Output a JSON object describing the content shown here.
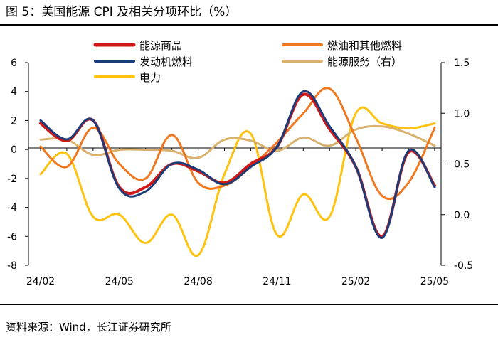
{
  "figure_title": "图 5：美国能源 CPI 及相关分项环比（%）",
  "source_note": "资料来源：Wind，长江证券研究所",
  "chart_data": {
    "type": "line",
    "title": "美国能源 CPI 及相关分项环比（%）",
    "categories": [
      "24/02",
      "24/03",
      "24/04",
      "24/05",
      "24/06",
      "24/07",
      "24/08",
      "24/09",
      "24/10",
      "24/11",
      "24/12",
      "25/01",
      "25/02",
      "25/03",
      "25/04",
      "25/05"
    ],
    "x_tick_labels": [
      "24/02",
      "24/05",
      "24/08",
      "24/11",
      "25/02",
      "25/05"
    ],
    "y_left": {
      "ticks": [
        6,
        4,
        2,
        0,
        -2,
        -4,
        -6,
        -8
      ],
      "ylim": [
        -8,
        6
      ],
      "unit": "%"
    },
    "y_right": {
      "ticks": [
        1.5,
        1.0,
        0.5,
        0.0,
        -0.5
      ],
      "tick_labels": [
        "1.5",
        "1.0",
        "0.5",
        "0.0",
        "-0.5"
      ],
      "ylim": [
        -0.5,
        1.5
      ],
      "unit": "%"
    },
    "series": [
      {
        "name": "燃油和其他燃料",
        "axis": "left",
        "color": "#F07820",
        "width": 3,
        "values": [
          0.2,
          -1.2,
          1.5,
          -1.0,
          -2.0,
          1.0,
          -2.3,
          -2.5,
          -1.2,
          0.5,
          2.5,
          4.2,
          0.8,
          -3.2,
          -2.3,
          1.5
        ]
      },
      {
        "name": "能源商品",
        "axis": "left",
        "color": "#D01818",
        "width": 4,
        "values": [
          1.8,
          0.6,
          2.0,
          -2.6,
          -2.6,
          -1.0,
          -1.5,
          -2.3,
          -1.0,
          0.2,
          3.8,
          1.4,
          -1.2,
          -6.0,
          -0.2,
          -2.5
        ]
      },
      {
        "name": "发动机燃料",
        "axis": "left",
        "color": "#1A3D7A",
        "width": 3,
        "values": [
          2.0,
          0.7,
          2.0,
          -2.7,
          -2.9,
          -1.0,
          -1.4,
          -2.4,
          -1.2,
          0.2,
          4.0,
          1.6,
          -1.2,
          -6.1,
          -0.1,
          -2.6
        ]
      },
      {
        "name": "能源服务（右）",
        "axis": "right",
        "color": "#D9B26E",
        "width": 3,
        "values": [
          0.74,
          0.74,
          0.59,
          0.64,
          0.64,
          0.63,
          0.56,
          0.74,
          0.73,
          0.63,
          0.76,
          0.68,
          0.84,
          0.87,
          0.8,
          0.68
        ]
      },
      {
        "name": "电力",
        "axis": "right",
        "color": "#FFC20E",
        "width": 3,
        "values": [
          0.4,
          0.6,
          -0.02,
          0.0,
          -0.28,
          0.0,
          -0.4,
          0.4,
          0.8,
          -0.2,
          0.2,
          -0.02,
          1.0,
          0.9,
          0.85,
          0.9
        ]
      }
    ],
    "legend_order": [
      "能源商品",
      "燃油和其他燃料",
      "发动机燃料",
      "能源服务（右）",
      "电力"
    ],
    "legend_position": "top",
    "grid": false
  }
}
